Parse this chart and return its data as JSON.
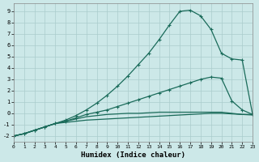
{
  "xlabel": "Humidex (Indice chaleur)",
  "background_color": "#cce8e8",
  "grid_color": "#aacccc",
  "line_color": "#1a6b5a",
  "xlim": [
    0,
    23
  ],
  "ylim": [
    -2.5,
    9.7
  ],
  "xticks": [
    0,
    1,
    2,
    3,
    4,
    5,
    6,
    7,
    8,
    9,
    10,
    11,
    12,
    13,
    14,
    15,
    16,
    17,
    18,
    19,
    20,
    21,
    22,
    23
  ],
  "yticks": [
    -2,
    -1,
    0,
    1,
    2,
    3,
    4,
    5,
    6,
    7,
    8,
    9
  ],
  "line_top_x": [
    0,
    1,
    2,
    3,
    4,
    5,
    6,
    7,
    8,
    9,
    10,
    11,
    12,
    13,
    14,
    15,
    16,
    17,
    18,
    19,
    20,
    21,
    22,
    23
  ],
  "line_top_y": [
    -2.0,
    -1.8,
    -1.5,
    -1.2,
    -0.9,
    -0.6,
    -0.2,
    0.3,
    0.9,
    1.6,
    2.4,
    3.3,
    4.3,
    5.3,
    6.5,
    7.8,
    9.0,
    9.1,
    8.6,
    7.4,
    5.3,
    4.8,
    4.7,
    -0.1
  ],
  "line_mid_x": [
    0,
    1,
    2,
    3,
    4,
    5,
    6,
    7,
    8,
    9,
    10,
    11,
    12,
    13,
    14,
    15,
    16,
    17,
    18,
    19,
    20,
    21,
    22,
    23
  ],
  "line_mid_y": [
    -2.0,
    -1.8,
    -1.5,
    -1.2,
    -0.9,
    -0.7,
    -0.4,
    -0.1,
    0.1,
    0.3,
    0.6,
    0.9,
    1.2,
    1.5,
    1.8,
    2.1,
    2.4,
    2.7,
    3.0,
    3.2,
    3.1,
    1.1,
    0.3,
    -0.1
  ],
  "line_low_x": [
    0,
    1,
    2,
    3,
    4,
    5,
    6,
    7,
    8,
    9,
    10,
    11,
    12,
    13,
    14,
    15,
    16,
    17,
    18,
    19,
    20,
    21,
    22,
    23
  ],
  "line_low_y": [
    -2.0,
    -1.8,
    -1.5,
    -1.2,
    -0.9,
    -0.7,
    -0.5,
    -0.3,
    -0.2,
    -0.1,
    -0.05,
    0.0,
    0.0,
    0.05,
    0.1,
    0.1,
    0.1,
    0.1,
    0.1,
    0.1,
    0.1,
    0.0,
    -0.1,
    -0.1
  ],
  "line_flat_x": [
    0,
    1,
    2,
    3,
    4,
    5,
    6,
    7,
    8,
    9,
    10,
    11,
    12,
    13,
    14,
    15,
    16,
    17,
    18,
    19,
    20,
    21,
    22,
    23
  ],
  "line_flat_y": [
    -2.0,
    -1.8,
    -1.5,
    -1.2,
    -0.9,
    -0.8,
    -0.7,
    -0.6,
    -0.55,
    -0.5,
    -0.45,
    -0.4,
    -0.35,
    -0.3,
    -0.25,
    -0.2,
    -0.15,
    -0.1,
    -0.05,
    0.0,
    0.0,
    -0.05,
    -0.1,
    -0.15
  ]
}
